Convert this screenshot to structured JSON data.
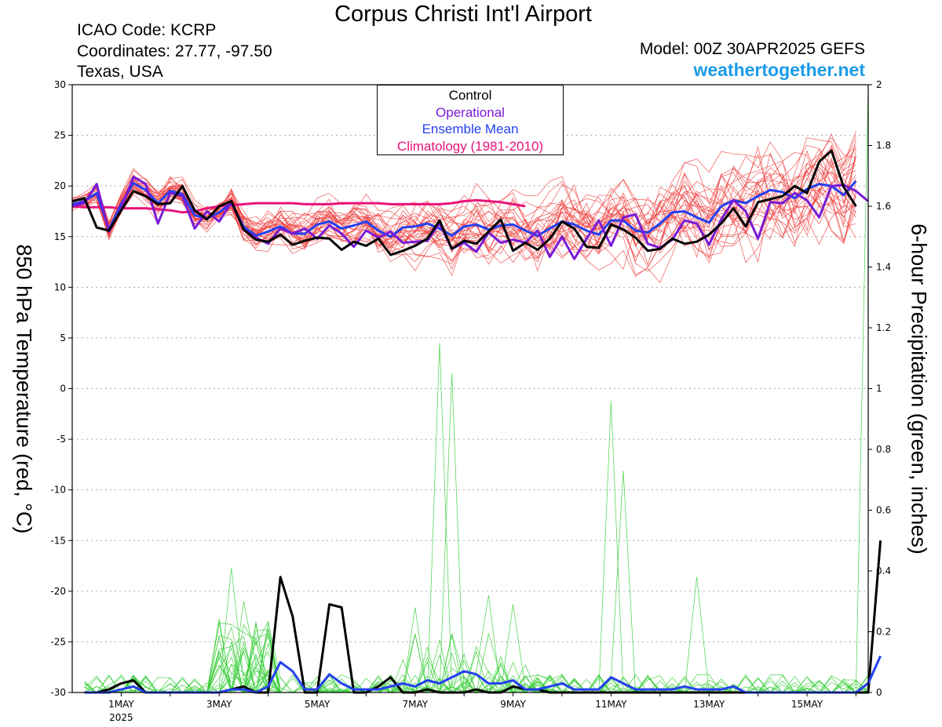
{
  "header": {
    "title": "Corpus Christi Int'l Airport",
    "icao": "ICAO Code: KCRP",
    "coordinates": "Coordinates: 27.77, -97.50",
    "region": "Texas, USA",
    "model": "Model: 00Z 30APR2025 GEFS",
    "site": "weathertogether.net"
  },
  "colors": {
    "control": "#000000",
    "operational": "#7a1ad6",
    "ensemble_mean": "#2440f0",
    "climatology": "#e8137a",
    "members_temp": "#f03c3c",
    "members_precip": "#33cc33",
    "grid": "#aaaaaa"
  },
  "legend": [
    {
      "label": "Control",
      "color": "#000000"
    },
    {
      "label": "Operational",
      "color": "#7a1ad6"
    },
    {
      "label": "Ensemble Mean",
      "color": "#2440f0"
    },
    {
      "label": "Climatology (1981-2010)",
      "color": "#e8137a"
    }
  ],
  "chart_data": {
    "type": "line",
    "ylabel": "850 hPa Temperature (red, °C)",
    "y2label": "6-hour Precipitation (green, inches)",
    "ylim": [
      -30,
      30
    ],
    "y2lim": [
      0,
      2
    ],
    "yticks": [
      "30",
      "25",
      "20",
      "15",
      "10",
      "5",
      "0",
      "-5",
      "-10",
      "-15",
      "-20",
      "-25",
      "-30"
    ],
    "y2ticks": [
      "2",
      "1.8",
      "1.6",
      "1.4",
      "1.2",
      "1",
      "0.8",
      "0.6",
      "0.4",
      "0.2",
      "0"
    ],
    "xlim": [
      -0.5,
      15.75
    ],
    "xtick_labels": [
      {
        "day": 0.5,
        "label": "1MAY",
        "sub": "2025"
      },
      {
        "day": 2.5,
        "label": "3MAY",
        "sub": ""
      },
      {
        "day": 4.5,
        "label": "5MAY",
        "sub": ""
      },
      {
        "day": 6.5,
        "label": "7MAY",
        "sub": ""
      },
      {
        "day": 8.5,
        "label": "9MAY",
        "sub": ""
      },
      {
        "day": 10.5,
        "label": "11MAY",
        "sub": ""
      },
      {
        "day": 12.5,
        "label": "13MAY",
        "sub": ""
      },
      {
        "day": 14.5,
        "label": "15MAY",
        "sub": ""
      }
    ],
    "grid": "horizontal dotted",
    "temperature_series": [
      {
        "name": "Control",
        "color": "#000000",
        "width": 3,
        "step": 0.25,
        "start": -0.5,
        "values": [
          18.5,
          18.8,
          15.9,
          15.6,
          17.6,
          19.5,
          19.0,
          18.2,
          18.3,
          20.0,
          17.6,
          16.7,
          18.0,
          18.5,
          15.7,
          14.7,
          14.5,
          15.2,
          14.2,
          14.6,
          14.9,
          14.8,
          13.7,
          14.5,
          14.1,
          14.8,
          13.2,
          13.6,
          14.1,
          14.8,
          16.6,
          13.8,
          14.6,
          14.3,
          15.5,
          16.7,
          13.6,
          14.4,
          13.7,
          14.8,
          16.5,
          15.8,
          14.0,
          13.9,
          16.2,
          15.7,
          14.9,
          13.6,
          13.8,
          14.8,
          14.3,
          14.5,
          15.2,
          16.3,
          17.8,
          16.0,
          18.4,
          18.7,
          19.0,
          20.0,
          19.3,
          22.4,
          23.5,
          19.9,
          18.0
        ]
      },
      {
        "name": "Operational",
        "color": "#7a1ad6",
        "width": 3,
        "step": 0.25,
        "start": -0.5,
        "values": [
          18.0,
          18.3,
          20.2,
          15.5,
          17.8,
          20.9,
          20.2,
          16.3,
          19.3,
          19.0,
          15.8,
          17.5,
          16.5,
          18.4,
          15.7,
          14.9,
          14.3,
          15.8,
          15.3,
          15.8,
          14.8,
          16.1,
          15.3,
          14.0,
          15.6,
          14.9,
          15.5,
          14.4,
          14.5,
          14.6,
          16.3,
          13.8,
          14.4,
          13.5,
          15.4,
          14.4,
          14.7,
          14.4,
          15.6,
          13.0,
          15.0,
          12.8,
          14.8,
          16.6,
          14.1,
          16.9,
          17.2,
          14.3,
          13.9,
          14.7,
          16.6,
          16.3,
          14.2,
          16.7,
          18.6,
          17.5,
          14.8,
          18.4,
          18.3,
          19.3,
          18.6,
          16.9,
          20.0,
          20.1,
          19.5,
          18.5
        ]
      },
      {
        "name": "Ensemble Mean",
        "color": "#2440f0",
        "width": 3,
        "step": 0.25,
        "start": -0.5,
        "values": [
          18.2,
          18.5,
          19.3,
          15.7,
          18.2,
          20.3,
          19.6,
          18.3,
          19.5,
          19.2,
          17.1,
          16.8,
          17.4,
          18.3,
          16.0,
          15.1,
          15.5,
          16.0,
          15.3,
          15.3,
          16.2,
          16.5,
          15.8,
          16.1,
          16.5,
          15.6,
          15.0,
          15.9,
          16.0,
          16.3,
          15.8,
          15.1,
          16.0,
          16.2,
          15.7,
          16.1,
          16.2,
          15.6,
          15.1,
          15.8,
          16.5,
          16.2,
          15.6,
          15.2,
          16.6,
          16.6,
          15.6,
          15.4,
          16.3,
          17.4,
          17.5,
          16.9,
          16.4,
          18.0,
          18.6,
          18.3,
          19.0,
          19.6,
          19.4,
          18.8,
          19.7,
          20.2,
          20.0,
          19.1,
          20.5
        ]
      },
      {
        "name": "Climatology",
        "color": "#e8137a",
        "width": 3,
        "step": 0.25,
        "start": -0.5,
        "values": [
          18.0,
          17.9,
          17.9,
          17.9,
          17.8,
          17.8,
          17.8,
          17.7,
          17.6,
          17.4,
          17.5,
          17.8,
          18.0,
          18.1,
          18.2,
          18.3,
          18.3,
          18.3,
          18.3,
          18.2,
          18.2,
          18.2,
          18.3,
          18.3,
          18.3,
          18.3,
          18.2,
          18.2,
          18.2,
          18.2,
          18.2,
          18.3,
          18.5,
          18.6,
          18.5,
          18.4,
          18.2,
          18.0
        ]
      }
    ],
    "precip_series": [
      {
        "name": "Control",
        "color": "#000000",
        "width": 3,
        "step": 0.25,
        "start": -0.25,
        "values": [
          0,
          0,
          0.01,
          0.03,
          0.04,
          0,
          0,
          0,
          0,
          0,
          0,
          0,
          0.01,
          0.02,
          0,
          0,
          0.38,
          0.25,
          0,
          0,
          0.29,
          0.28,
          0,
          0,
          0.02,
          0.05,
          0,
          0,
          0.01,
          0,
          0,
          0,
          0.01,
          0,
          0,
          0.02,
          0.01,
          0.01,
          0,
          0,
          0,
          0,
          0,
          0,
          0,
          0,
          0,
          0,
          0,
          0,
          0,
          0,
          0,
          0,
          0,
          0,
          0,
          0,
          0,
          0,
          0,
          0,
          0,
          0,
          0,
          0.5
        ]
      },
      {
        "name": "Ensemble Mean",
        "color": "#2440f0",
        "width": 3,
        "step": 0.25,
        "start": -0.25,
        "values": [
          0,
          0,
          0,
          0.01,
          0.02,
          0,
          0,
          0,
          0,
          0,
          0,
          0,
          0.01,
          0.01,
          0,
          0.02,
          0.1,
          0.07,
          0.01,
          0.01,
          0.06,
          0.03,
          0.01,
          0.01,
          0.01,
          0.02,
          0.03,
          0.02,
          0.04,
          0.03,
          0.05,
          0.07,
          0.06,
          0.03,
          0.03,
          0.04,
          0.01,
          0.01,
          0.02,
          0.03,
          0.01,
          0.01,
          0.01,
          0.05,
          0.03,
          0.01,
          0.01,
          0.01,
          0.01,
          0.02,
          0.01,
          0.01,
          0.01,
          0.02,
          0,
          0,
          0,
          0,
          0,
          0,
          0,
          0,
          0,
          0,
          0.03,
          0.12
        ]
      }
    ],
    "ensemble_temperature_members": {
      "count": 30,
      "color": "#f03c3c",
      "note": "thin members around ensemble mean"
    },
    "ensemble_precip_members": {
      "count": 30,
      "color": "#33cc33",
      "peaks": [
        [
          2.75,
          0.41
        ],
        [
          3.0,
          0.3
        ],
        [
          6.5,
          0.28
        ],
        [
          7.0,
          1.15
        ],
        [
          7.3,
          1.05
        ],
        [
          8.0,
          0.32
        ],
        [
          8.5,
          0.29
        ],
        [
          10.6,
          0.96
        ],
        [
          10.8,
          0.73
        ],
        [
          12.3,
          0.38
        ],
        [
          15.75,
          2.0
        ]
      ]
    }
  }
}
